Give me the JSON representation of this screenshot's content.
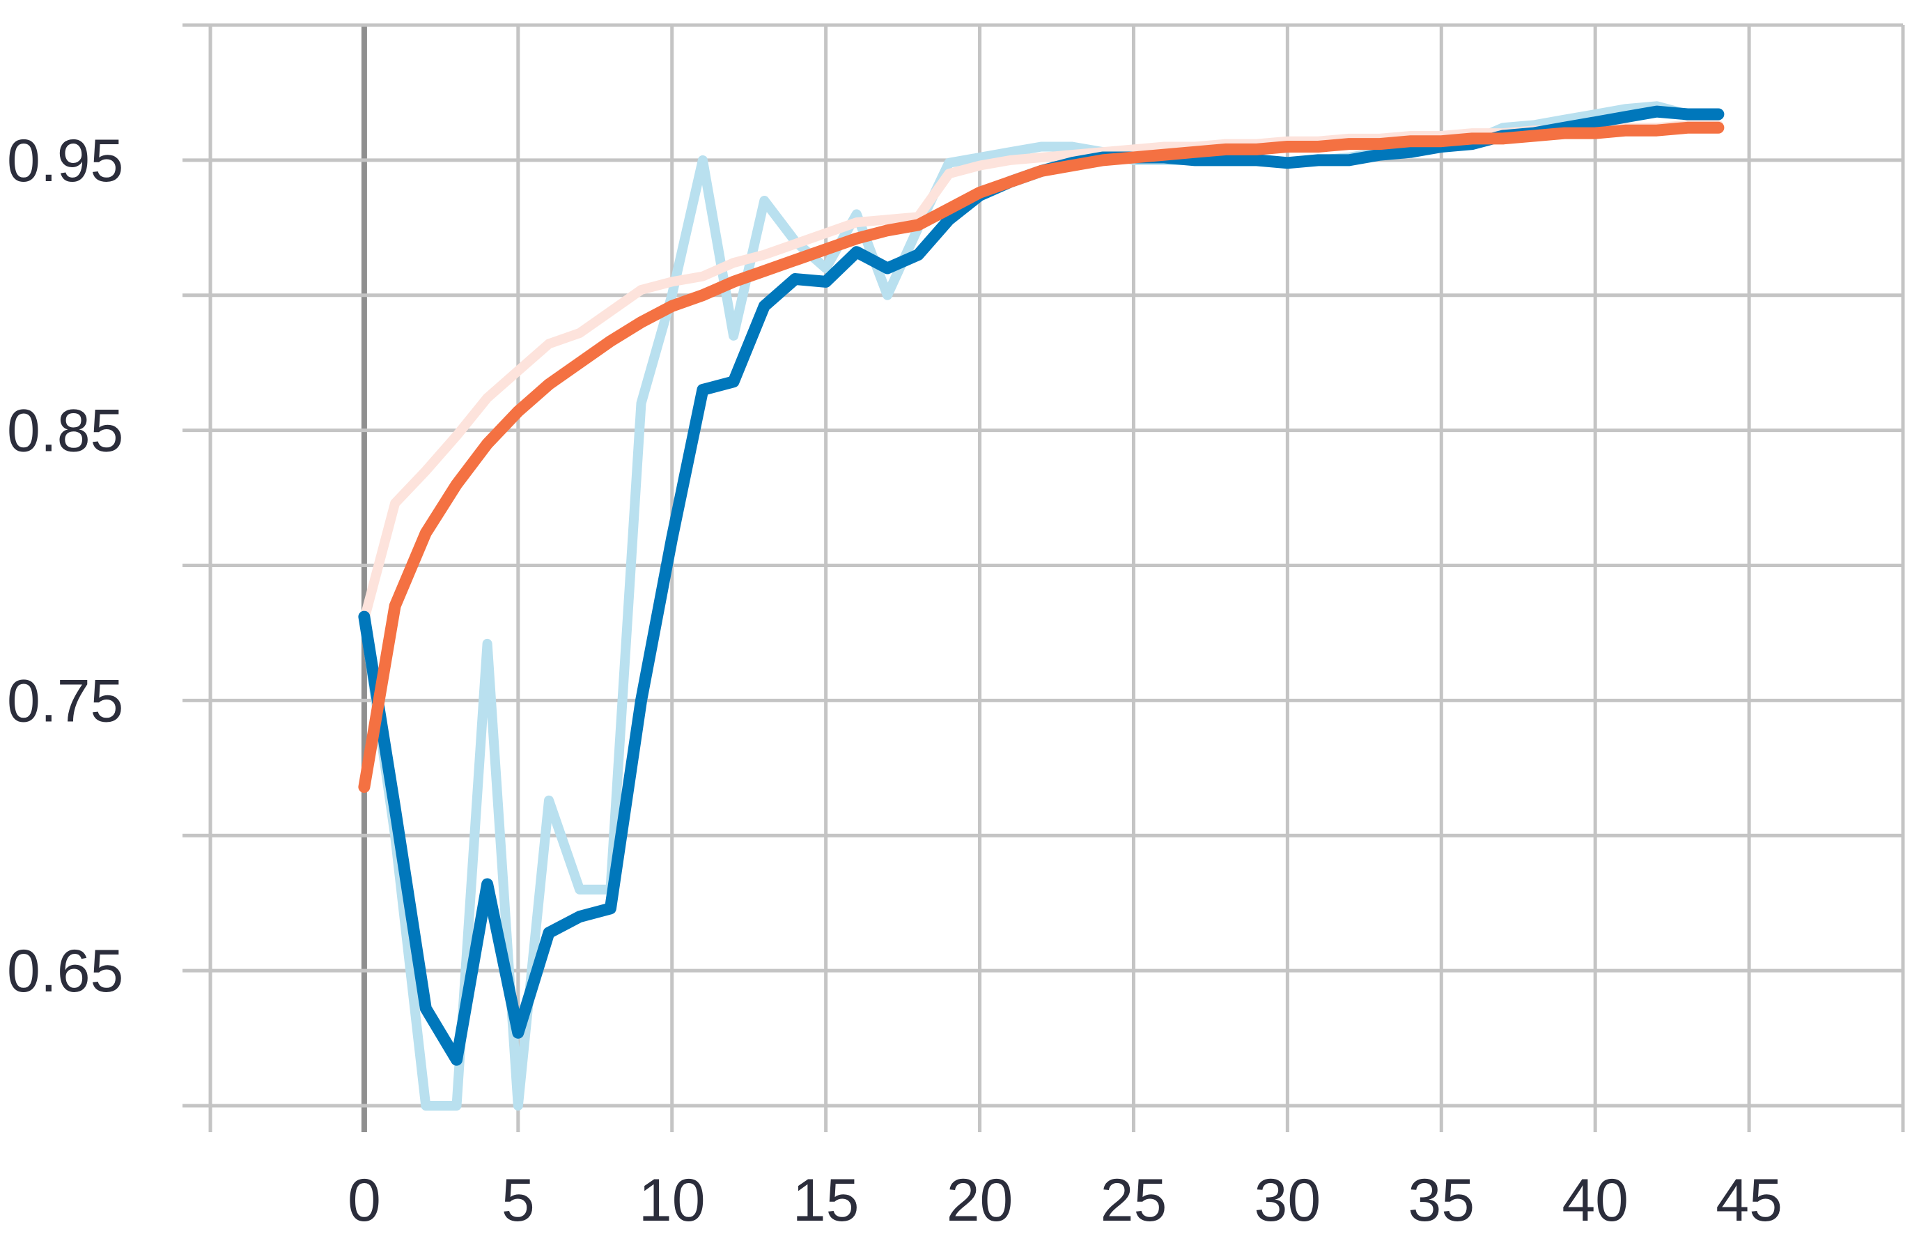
{
  "chart_data": {
    "type": "line",
    "title": "",
    "xlabel": "",
    "ylabel": "",
    "xlim": [
      -5,
      50
    ],
    "ylim": [
      0.6,
      1.0
    ],
    "x_ticks": [
      0,
      5,
      10,
      15,
      20,
      25,
      30,
      35,
      40,
      45
    ],
    "y_ticks": [
      0.65,
      0.75,
      0.85,
      0.95
    ],
    "y_tick_labels": [
      "0.65",
      "0.75",
      "0.85",
      "0.95"
    ],
    "x_minor_gridlines": [
      -5,
      50
    ],
    "y_minor_gridlines": [
      0.6,
      0.7,
      0.8,
      0.9,
      1.0
    ],
    "grid": true,
    "legend": "none",
    "series": [
      {
        "color": "#b9e0ef",
        "role": "raw",
        "x": [
          0,
          1,
          2,
          3,
          4,
          5,
          6,
          7,
          8,
          9,
          10,
          11,
          12,
          13,
          14,
          15,
          16,
          17,
          18,
          19,
          20,
          21,
          22,
          23,
          24,
          25,
          26,
          27,
          28,
          29,
          30,
          31,
          32,
          33,
          34,
          35,
          36,
          37,
          38,
          39,
          40,
          41,
          42,
          43,
          44
        ],
        "y": [
          0.78,
          0.7,
          0.6,
          0.6,
          0.771,
          0.6,
          0.713,
          0.68,
          0.68,
          0.86,
          0.9,
          0.95,
          0.885,
          0.935,
          0.92,
          0.91,
          0.93,
          0.9,
          0.925,
          0.949,
          0.951,
          0.953,
          0.955,
          0.955,
          0.953,
          0.95,
          0.95,
          0.95,
          0.95,
          0.95,
          0.949,
          0.95,
          0.951,
          0.953,
          0.954,
          0.956,
          0.957,
          0.962,
          0.963,
          0.965,
          0.967,
          0.969,
          0.97,
          0.967,
          0.967
        ]
      },
      {
        "color": "#0077bb",
        "role": "smoothed",
        "x": [
          0,
          1,
          2,
          3,
          4,
          5,
          6,
          7,
          8,
          9,
          10,
          11,
          12,
          13,
          14,
          15,
          16,
          17,
          18,
          19,
          20,
          21,
          22,
          23,
          24,
          25,
          26,
          27,
          28,
          29,
          30,
          31,
          32,
          33,
          34,
          35,
          36,
          37,
          38,
          39,
          40,
          41,
          42,
          43,
          44
        ],
        "y": [
          0.781,
          0.71,
          0.636,
          0.617,
          0.682,
          0.627,
          0.664,
          0.67,
          0.673,
          0.75,
          0.81,
          0.865,
          0.868,
          0.896,
          0.906,
          0.905,
          0.916,
          0.91,
          0.915,
          0.928,
          0.937,
          0.942,
          0.946,
          0.949,
          0.951,
          0.951,
          0.951,
          0.95,
          0.95,
          0.95,
          0.949,
          0.95,
          0.95,
          0.952,
          0.953,
          0.955,
          0.956,
          0.959,
          0.96,
          0.962,
          0.964,
          0.966,
          0.968,
          0.967,
          0.967
        ]
      },
      {
        "color": "#fde3dc",
        "role": "raw",
        "x": [
          0,
          1,
          2,
          3,
          4,
          5,
          6,
          7,
          8,
          9,
          10,
          11,
          12,
          13,
          14,
          15,
          16,
          17,
          18,
          19,
          20,
          21,
          22,
          23,
          24,
          25,
          26,
          27,
          28,
          29,
          30,
          31,
          32,
          33,
          34,
          35,
          36,
          37,
          38,
          39,
          40,
          41,
          42,
          43,
          44
        ],
        "y": [
          0.78,
          0.823,
          0.835,
          0.848,
          0.862,
          0.872,
          0.882,
          0.886,
          0.894,
          0.902,
          0.905,
          0.907,
          0.912,
          0.915,
          0.919,
          0.923,
          0.927,
          0.928,
          0.929,
          0.945,
          0.948,
          0.95,
          0.951,
          0.952,
          0.953,
          0.954,
          0.955,
          0.955,
          0.956,
          0.956,
          0.957,
          0.957,
          0.958,
          0.958,
          0.959,
          0.959,
          0.96,
          0.96,
          0.961,
          0.961,
          0.962,
          0.962,
          0.962,
          0.963,
          0.963
        ]
      },
      {
        "color": "#f47142",
        "role": "smoothed",
        "x": [
          0,
          1,
          2,
          3,
          4,
          5,
          6,
          7,
          8,
          9,
          10,
          11,
          12,
          13,
          14,
          15,
          16,
          17,
          18,
          19,
          20,
          21,
          22,
          23,
          24,
          25,
          26,
          27,
          28,
          29,
          30,
          31,
          32,
          33,
          34,
          35,
          36,
          37,
          38,
          39,
          40,
          41,
          42,
          43,
          44
        ],
        "y": [
          0.718,
          0.785,
          0.812,
          0.83,
          0.845,
          0.857,
          0.867,
          0.875,
          0.883,
          0.89,
          0.896,
          0.9,
          0.905,
          0.909,
          0.913,
          0.917,
          0.921,
          0.924,
          0.926,
          0.932,
          0.938,
          0.942,
          0.946,
          0.948,
          0.95,
          0.951,
          0.952,
          0.953,
          0.954,
          0.954,
          0.955,
          0.955,
          0.956,
          0.956,
          0.957,
          0.957,
          0.958,
          0.958,
          0.959,
          0.96,
          0.96,
          0.961,
          0.961,
          0.962,
          0.962
        ]
      }
    ]
  }
}
